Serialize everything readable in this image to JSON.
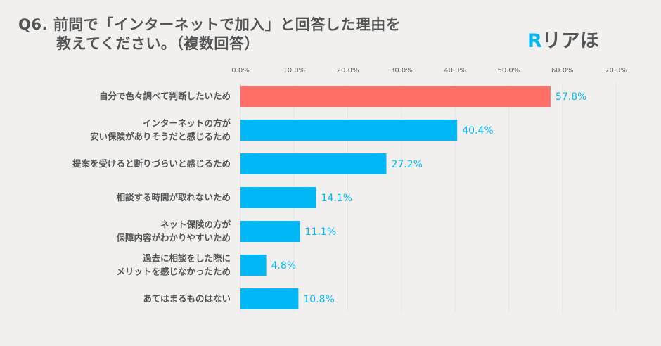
{
  "title": {
    "line1": "Q6. 前問で「インターネットで加入」と回答した理由を",
    "line2": "教えてください。（複数回答）"
  },
  "logo": {
    "mark": "R",
    "text": "リアほ"
  },
  "chart_data": {
    "type": "bar",
    "orientation": "horizontal",
    "title": "Q6. 前問で「インターネットで加入」と回答した理由を教えてください。（複数回答）",
    "categories": [
      [
        "自分で色々調べて判断したいため"
      ],
      [
        "インターネットの方が",
        "安い保険がありそうだと感じるため"
      ],
      [
        "提案を受けると断りづらいと感じるため"
      ],
      [
        "相談する時間が取れないため"
      ],
      [
        "ネット保険の方が",
        "保障内容がわかりやすいため"
      ],
      [
        "過去に相談をした際に",
        "メリットを感じなかったため"
      ],
      [
        "あてはまるものはない"
      ]
    ],
    "values": [
      57.8,
      40.4,
      27.2,
      14.1,
      11.1,
      4.8,
      10.8
    ],
    "value_labels": [
      "57.8%",
      "40.4%",
      "27.2%",
      "14.1%",
      "11.1%",
      "4.8%",
      "10.8%"
    ],
    "xlim": [
      0,
      70
    ],
    "tick_labels": [
      "0.0%",
      "10.0%",
      "20.0%",
      "30.0%",
      "40.0%",
      "50.0%",
      "60.0%",
      "70.0%"
    ],
    "grid": true,
    "colors": {
      "highlight": "#ff6f66",
      "default": "#00b8f5",
      "value_label": "#00b8f5"
    }
  }
}
